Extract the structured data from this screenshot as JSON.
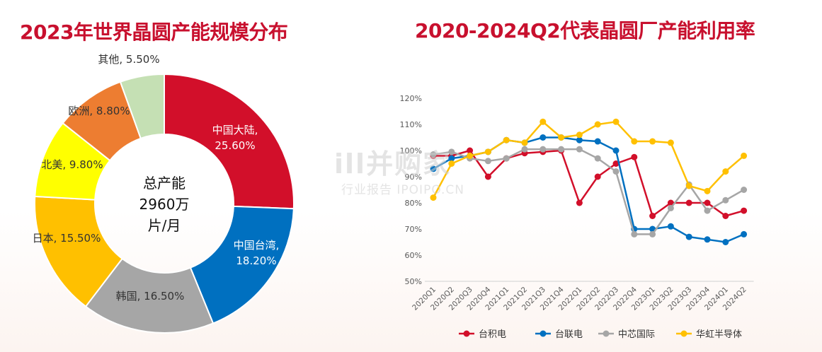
{
  "left_panel": {
    "title": "2023年世界晶圆产能规模分布"
  },
  "right_panel": {
    "title": "2020-2024Q2代表晶圆厂产能利用率"
  },
  "watermark": {
    "main": "ill并购家",
    "sub": "行业报告 IPOIPO.CN"
  },
  "chart_data": [
    {
      "type": "pie",
      "donut": true,
      "title": "2023年世界晶圆产能规模分布",
      "center_text": [
        "总产能",
        "2960万",
        "片/月"
      ],
      "slices": [
        {
          "name": "中国大陆",
          "value": 25.6,
          "label": "中国大陆,\n25.60%",
          "color": "#D20F2A"
        },
        {
          "name": "中国台湾",
          "value": 18.2,
          "label": "中国台湾,\n18.20%",
          "color": "#0070C0"
        },
        {
          "name": "韩国",
          "value": 16.5,
          "label": "韩国, 16.50%",
          "color": "#A6A6A6"
        },
        {
          "name": "日本",
          "value": 15.5,
          "label": "日本, 15.50%",
          "color": "#FFC000"
        },
        {
          "name": "北美",
          "value": 9.8,
          "label": "北美, 9.80%",
          "color": "#FFFF00"
        },
        {
          "name": "欧洲",
          "value": 8.8,
          "label": "欧洲, 8.80%",
          "color": "#ED7D31"
        },
        {
          "name": "其他",
          "value": 5.5,
          "label": "其他, 5.50%",
          "color": "#C5E0B4"
        }
      ]
    },
    {
      "type": "line",
      "title": "2020-2024Q2代表晶圆厂产能利用率",
      "categories": [
        "2020Q1",
        "2020Q2",
        "2020Q3",
        "2020Q4",
        "2021Q1",
        "2021Q2",
        "2021Q3",
        "2021Q4",
        "2022Q1",
        "2022Q2",
        "2022Q3",
        "2022Q4",
        "2023Q1",
        "2023Q2",
        "2023Q3",
        "2023Q4",
        "2024Q1",
        "2024Q2"
      ],
      "ylim": [
        50,
        120
      ],
      "yticks": [
        50,
        60,
        70,
        80,
        90,
        100,
        110,
        120
      ],
      "ytick_labels": [
        "50%",
        "60%",
        "70%",
        "80%",
        "90%",
        "100%",
        "110%",
        "120%"
      ],
      "xlabel": "",
      "ylabel": "",
      "grid": false,
      "legend": "bottom",
      "series": [
        {
          "name": "台积电",
          "color": "#D20F2A",
          "values": [
            98,
            98,
            100,
            90,
            97,
            99,
            99.5,
            100,
            80,
            90,
            95,
            97.5,
            75,
            80,
            80,
            80,
            75,
            77
          ]
        },
        {
          "name": "台联电",
          "color": "#0070C0",
          "values": [
            93,
            97,
            98,
            99.5,
            104,
            103,
            105,
            105,
            104,
            103.5,
            100,
            70,
            70,
            71,
            67,
            66,
            65,
            68
          ]
        },
        {
          "name": "中芯国际",
          "color": "#A6A6A6",
          "values": [
            98.5,
            99.5,
            97,
            96,
            97,
            100.5,
            100.5,
            100.5,
            100.5,
            97,
            92,
            68,
            68,
            78,
            87,
            77,
            81,
            85
          ]
        },
        {
          "name": "华虹半导体",
          "color": "#FFC000",
          "values": [
            82,
            95,
            98,
            99.5,
            104,
            103,
            111,
            105,
            106,
            110,
            111,
            103.5,
            103.5,
            103,
            86.5,
            84.5,
            92,
            98
          ]
        }
      ]
    }
  ]
}
